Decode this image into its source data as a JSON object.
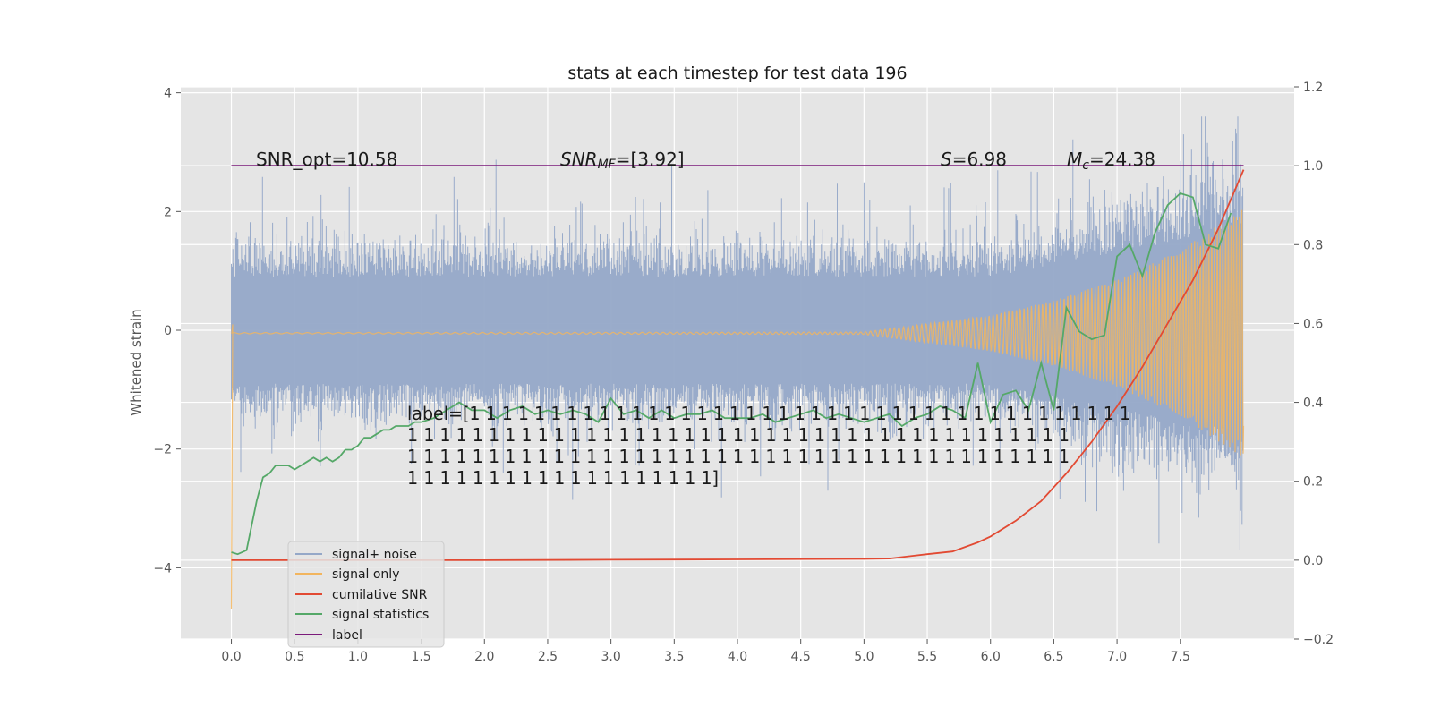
{
  "chart_data": {
    "type": "line",
    "title": "stats at each timestep for test data 196",
    "xlabel": "",
    "ylabel": "Whitened strain",
    "xlim": [
      -0.4,
      8.4
    ],
    "ylim": [
      -5.2,
      4.1
    ],
    "y2lim": [
      -0.2,
      1.2
    ],
    "x_ticks": [
      "0.0",
      "0.5",
      "1.0",
      "1.5",
      "2.0",
      "2.5",
      "3.0",
      "3.5",
      "4.0",
      "4.5",
      "5.0",
      "5.5",
      "6.0",
      "6.5",
      "7.0",
      "7.5"
    ],
    "y_ticks": [
      "4",
      "2",
      "0",
      "−2",
      "−4"
    ],
    "y2_ticks": [
      "1.2",
      "1.0",
      "0.8",
      "0.6",
      "0.4",
      "0.2",
      "0.0",
      "−0.2"
    ],
    "grid": true,
    "legend_position": "bottom-left",
    "annotations": {
      "snr_opt": "SNR_opt=10.58",
      "snr_mf_main": "SNR",
      "snr_mf_sub": "MF",
      "snr_mf_rest": "=[3.92]",
      "s_var": "S",
      "s_rest": "=6.98",
      "mc_var": "M",
      "mc_sub": "c",
      "mc_rest": "=24.38",
      "label_lines": [
        "label=[1 1 1 1 1 1 1 1 1 1 1 1 1 1 1 1 1 1 1 1 1 1 1 1 1 1 1 1 1 1 1 1 1 1 1 1 1 1 1 1 1",
        " 1 1 1 1 1 1 1 1 1 1 1 1 1 1 1 1 1 1 1 1 1 1 1 1 1 1 1 1 1 1 1 1 1 1 1 1 1 1 1 1 1",
        " 1 1 1 1 1 1 1 1 1 1 1 1 1 1 1 1 1 1 1 1 1 1 1 1 1 1 1 1 1 1 1 1 1 1 1 1 1 1 1 1 1",
        " 1 1 1 1 1 1 1 1 1 1 1 1 1 1 1 1 1 1 1]"
      ]
    },
    "series": [
      {
        "name": "signal+ noise",
        "axis": "left",
        "color": "#95a8c8",
        "style": "dense noise, roughly ±1.5 with spikes to ±3.5, amplitude growing after t=6"
      },
      {
        "name": "signal only",
        "axis": "left",
        "color": "#f2b55e",
        "style": "chirp starting near 0, growing to ±2 by t=8",
        "x": [
          0.0,
          5.0,
          6.0,
          6.5,
          7.0,
          7.5,
          8.0
        ],
        "envelope": [
          0.01,
          0.02,
          0.3,
          0.55,
          0.9,
          1.4,
          2.1
        ]
      },
      {
        "name": "cumilative SNR",
        "axis": "right",
        "color": "#e24a33",
        "x": [
          0.0,
          1.0,
          2.0,
          3.0,
          4.0,
          5.0,
          5.2,
          5.5,
          5.7,
          5.9,
          6.0,
          6.2,
          6.4,
          6.6,
          6.8,
          7.0,
          7.2,
          7.4,
          7.6,
          7.8,
          8.0
        ],
        "y": [
          0.0,
          0.0,
          0.0,
          0.001,
          0.002,
          0.003,
          0.004,
          0.015,
          0.022,
          0.045,
          0.06,
          0.1,
          0.15,
          0.22,
          0.3,
          0.39,
          0.49,
          0.6,
          0.71,
          0.84,
          0.99
        ]
      },
      {
        "name": "signal statistics",
        "axis": "right",
        "color": "#55a868",
        "x": [
          0.0,
          0.05,
          0.12,
          0.2,
          0.25,
          0.3,
          0.35,
          0.4,
          0.45,
          0.5,
          0.55,
          0.6,
          0.65,
          0.7,
          0.75,
          0.8,
          0.85,
          0.9,
          0.95,
          1.0,
          1.05,
          1.1,
          1.15,
          1.2,
          1.25,
          1.3,
          1.35,
          1.4,
          1.45,
          1.5,
          1.6,
          1.7,
          1.8,
          1.9,
          2.0,
          2.1,
          2.2,
          2.3,
          2.4,
          2.5,
          2.6,
          2.7,
          2.8,
          2.9,
          3.0,
          3.1,
          3.2,
          3.3,
          3.4,
          3.5,
          3.6,
          3.7,
          3.8,
          3.9,
          4.0,
          4.1,
          4.2,
          4.3,
          4.4,
          4.5,
          4.6,
          4.7,
          4.8,
          4.9,
          5.0,
          5.1,
          5.2,
          5.3,
          5.4,
          5.5,
          5.6,
          5.7,
          5.8,
          5.9,
          6.0,
          6.1,
          6.2,
          6.3,
          6.4,
          6.5,
          6.6,
          6.7,
          6.8,
          6.9,
          7.0,
          7.1,
          7.2,
          7.3,
          7.4,
          7.5,
          7.6,
          7.7,
          7.8,
          7.9
        ],
        "y": [
          0.02,
          0.015,
          0.025,
          0.15,
          0.21,
          0.22,
          0.24,
          0.24,
          0.24,
          0.23,
          0.24,
          0.25,
          0.26,
          0.25,
          0.26,
          0.25,
          0.26,
          0.28,
          0.28,
          0.29,
          0.31,
          0.31,
          0.32,
          0.33,
          0.33,
          0.34,
          0.34,
          0.34,
          0.35,
          0.35,
          0.36,
          0.38,
          0.4,
          0.38,
          0.38,
          0.36,
          0.38,
          0.39,
          0.37,
          0.38,
          0.37,
          0.38,
          0.37,
          0.35,
          0.41,
          0.37,
          0.38,
          0.36,
          0.38,
          0.36,
          0.37,
          0.37,
          0.38,
          0.36,
          0.36,
          0.36,
          0.37,
          0.35,
          0.36,
          0.37,
          0.38,
          0.36,
          0.37,
          0.36,
          0.35,
          0.36,
          0.37,
          0.34,
          0.36,
          0.37,
          0.39,
          0.38,
          0.36,
          0.5,
          0.35,
          0.42,
          0.43,
          0.38,
          0.5,
          0.38,
          0.64,
          0.58,
          0.56,
          0.57,
          0.77,
          0.8,
          0.72,
          0.83,
          0.9,
          0.93,
          0.92,
          0.8,
          0.79,
          0.88
        ]
      },
      {
        "name": "label",
        "axis": "right",
        "color": "#7b1a7b",
        "x": [
          0.0,
          8.0
        ],
        "y": [
          1.0,
          1.0
        ]
      }
    ]
  }
}
